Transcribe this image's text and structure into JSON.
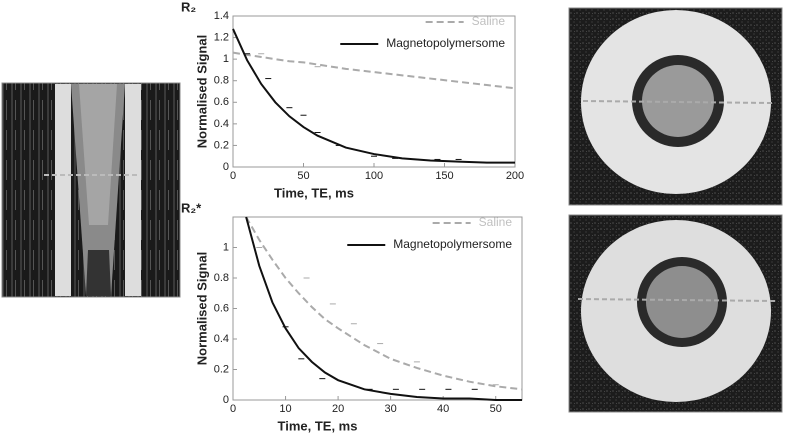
{
  "chart_data": [
    {
      "type": "line",
      "title": "R₂",
      "xlabel": "Time, TE, ms",
      "ylabel": "Normalised Signal",
      "xlim": [
        0,
        200
      ],
      "xticks": [
        0,
        50,
        100,
        150,
        200
      ],
      "ylim": [
        0,
        1.4
      ],
      "yticks": [
        0,
        0.2,
        0.4,
        0.6,
        0.8,
        1,
        1.2,
        1.4
      ],
      "legend": "upper right",
      "x": [
        0,
        10,
        20,
        30,
        40,
        50,
        60,
        80,
        100,
        120,
        140,
        160,
        180,
        200
      ],
      "series": [
        {
          "name": "Saline",
          "color": "#aaaaaa",
          "linestyle": "dashed",
          "values": [
            1.06,
            1.04,
            1.02,
            1.0,
            0.98,
            0.97,
            0.95,
            0.91,
            0.88,
            0.85,
            0.82,
            0.79,
            0.76,
            0.73
          ],
          "points_x": [
            20,
            60
          ],
          "points": [
            1.05,
            0.93
          ]
        },
        {
          "name": "Magnetopolymersome",
          "color": "#111111",
          "linestyle": "solid",
          "values": [
            1.28,
            0.99,
            0.77,
            0.6,
            0.47,
            0.37,
            0.29,
            0.18,
            0.12,
            0.08,
            0.06,
            0.05,
            0.04,
            0.04
          ],
          "points_x": [
            10,
            25,
            40,
            50,
            60,
            75,
            100,
            115,
            130,
            145,
            160
          ],
          "points": [
            1.05,
            0.82,
            0.55,
            0.48,
            0.32,
            0.2,
            0.1,
            0.08,
            0.07,
            0.07,
            0.07
          ]
        }
      ]
    },
    {
      "type": "line",
      "title": "R₂*",
      "xlabel": "Time, TE, ms",
      "ylabel": "Normalised Signal",
      "xlim": [
        0,
        55
      ],
      "xticks": [
        0,
        10,
        20,
        30,
        40,
        50
      ],
      "ylim": [
        0,
        1.2
      ],
      "yticks": [
        0,
        0.2,
        0.4,
        0.6,
        0.8,
        1
      ],
      "legend": "upper right",
      "x": [
        2.5,
        5,
        7.5,
        10,
        12.5,
        15,
        17.5,
        20,
        25,
        30,
        35,
        40,
        45,
        50,
        55
      ],
      "series": [
        {
          "name": "Saline",
          "color": "#aaaaaa",
          "linestyle": "dashed",
          "values": [
            1.2,
            1.05,
            0.92,
            0.8,
            0.7,
            0.61,
            0.53,
            0.47,
            0.36,
            0.27,
            0.21,
            0.16,
            0.12,
            0.09,
            0.07
          ],
          "points_x": [
            5,
            14,
            19,
            23,
            28,
            35,
            50
          ],
          "points": [
            1.0,
            0.8,
            0.63,
            0.5,
            0.37,
            0.25,
            0.1
          ]
        },
        {
          "name": "Magnetopolymersome",
          "color": "#111111",
          "linestyle": "solid",
          "values": [
            1.2,
            0.88,
            0.64,
            0.47,
            0.34,
            0.25,
            0.18,
            0.13,
            0.07,
            0.04,
            0.02,
            0.01,
            0.01,
            0,
            0
          ],
          "points_x": [
            10,
            13,
            17,
            26,
            31,
            36,
            41,
            46
          ],
          "points": [
            0.48,
            0.27,
            0.14,
            0.07,
            0.07,
            0.07,
            0.07,
            0.07
          ]
        }
      ]
    }
  ]
}
